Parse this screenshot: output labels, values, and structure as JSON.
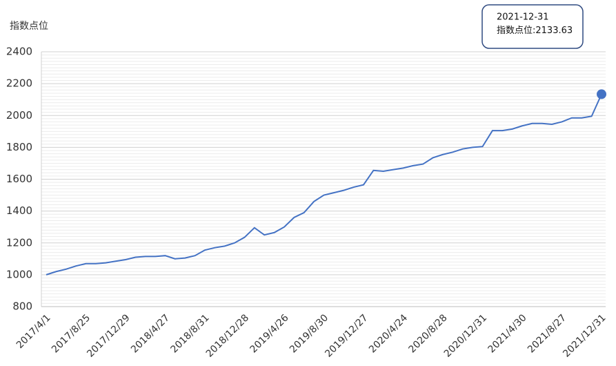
{
  "chart_data": {
    "type": "line",
    "y_label": "指数点位",
    "categories": [
      "2017/4/1",
      null,
      null,
      null,
      "2017/8/25",
      null,
      null,
      null,
      "2017/12/29",
      null,
      null,
      null,
      "2018/4/27",
      null,
      null,
      null,
      "2018/8/31",
      null,
      null,
      null,
      "2018/12/28",
      null,
      null,
      null,
      "2019/4/26",
      null,
      null,
      null,
      "2019/8/30",
      null,
      null,
      null,
      "2019/12/27",
      null,
      null,
      null,
      "2020/4/24",
      null,
      null,
      null,
      "2020/8/28",
      null,
      null,
      null,
      "2020/12/31",
      null,
      null,
      null,
      "2021/4/30",
      null,
      null,
      null,
      "2021/8/27",
      null,
      null,
      null,
      "2021/12/31"
    ],
    "series": [
      {
        "name": "指数点位",
        "color": "#4472c4",
        "values": [
          1000,
          1020,
          1035,
          1055,
          1070,
          1070,
          1075,
          1085,
          1095,
          1110,
          1115,
          1115,
          1120,
          1100,
          1105,
          1120,
          1155,
          1170,
          1180,
          1200,
          1235,
          1295,
          1250,
          1265,
          1300,
          1360,
          1390,
          1460,
          1500,
          1515,
          1530,
          1550,
          1565,
          1655,
          1650,
          1660,
          1670,
          1685,
          1695,
          1735,
          1755,
          1770,
          1790,
          1800,
          1805,
          1905,
          1905,
          1915,
          1935,
          1950,
          1950,
          1945,
          1960,
          1985,
          1985,
          1995,
          2133.63
        ]
      }
    ],
    "ylim": [
      800,
      2400
    ],
    "yticks": [
      800,
      1000,
      1200,
      1400,
      1600,
      1800,
      2000,
      2200,
      2400
    ],
    "grid": true,
    "tooltip": {
      "date": "2021-12-31",
      "label": "指数点位:",
      "value": 2133.63
    }
  }
}
